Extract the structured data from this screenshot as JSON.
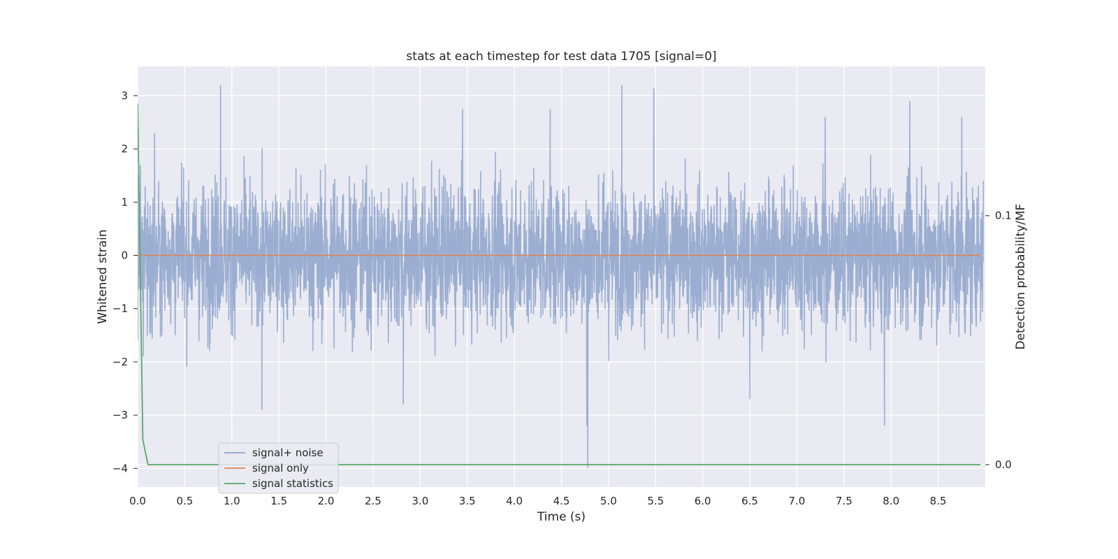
{
  "chart_data": {
    "type": "line",
    "title": "stats at each timestep for test data 1705 [signal=0]",
    "xlabel": "Time (s)",
    "ylabel": "Whitened strain",
    "y2label": "Detection probability/MF",
    "xlim": [
      0.0,
      9.0
    ],
    "ylim": [
      -4.35,
      3.55
    ],
    "y2lim": [
      -0.009,
      0.16
    ],
    "xticks": [
      "0.0",
      "0.5",
      "1.0",
      "1.5",
      "2.0",
      "2.5",
      "3.0",
      "3.5",
      "4.0",
      "4.5",
      "5.0",
      "5.5",
      "6.0",
      "6.5",
      "7.0",
      "7.5",
      "8.0",
      "8.5"
    ],
    "yticks": [
      "3",
      "2",
      "1",
      "0",
      "−1",
      "−2",
      "−3",
      "−4"
    ],
    "y2ticks": [
      "0.1",
      "0.0"
    ],
    "grid": true,
    "legend_position": "lower-left",
    "colors": {
      "background": "#eaeaf2",
      "grid": "#ffffff",
      "signal_noise": "#4c72b0",
      "signal_only": "#dd8452",
      "signal_statistics": "#55a868"
    },
    "series": [
      {
        "name": "signal+ noise",
        "axis": "left",
        "kind": "whitened noise, ~1.0 std, 4096 Hz over 9 s",
        "x": [
          0.0,
          0.03,
          0.06,
          0.08,
          0.18,
          0.88,
          1.32,
          2.82,
          3.45,
          4.38,
          4.77,
          4.78,
          5.14,
          5.48,
          6.5,
          7.3,
          7.93,
          8.2,
          8.75,
          8.98
        ],
        "values": [
          -1.6,
          1.7,
          -1.9,
          1.3,
          2.3,
          3.2,
          -2.9,
          -2.8,
          2.75,
          2.75,
          -3.2,
          -4.0,
          3.2,
          3.15,
          -2.7,
          2.6,
          -3.2,
          2.9,
          2.6,
          1.4
        ]
      },
      {
        "name": "signal only",
        "axis": "left",
        "x": [
          0.0,
          8.95
        ],
        "values": [
          0.0,
          0.0
        ]
      },
      {
        "name": "signal statistics",
        "axis": "right",
        "x": [
          0.0,
          0.055,
          0.11,
          0.5,
          1.0,
          2.0,
          3.0,
          4.0,
          5.0,
          6.0,
          7.0,
          8.0,
          8.95
        ],
        "values": [
          0.145,
          0.01,
          0.0,
          0.0,
          0.0,
          0.0,
          0.0,
          0.0,
          0.0,
          0.0,
          0.0,
          0.0,
          0.0
        ]
      }
    ]
  }
}
